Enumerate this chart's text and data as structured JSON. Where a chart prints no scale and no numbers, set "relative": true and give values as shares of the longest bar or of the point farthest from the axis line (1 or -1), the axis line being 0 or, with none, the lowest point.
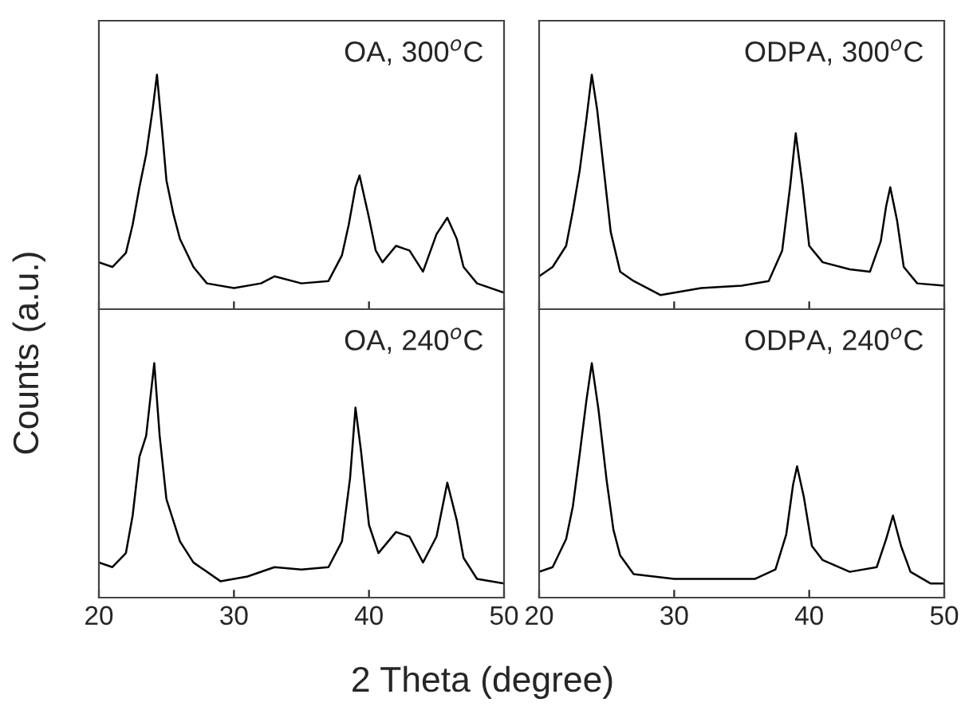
{
  "chart_data": [
    {
      "type": "line",
      "relative": true,
      "ylabel": "Counts (a.u.)",
      "annotations": [
        "OA, 300$^{o}$C"
      ],
      "xlim": [
        20,
        50
      ],
      "xticks": [
        20,
        30,
        40,
        50
      ],
      "tick_labels": false,
      "series": [
        {
          "color": "#000000",
          "x": [
            20,
            21,
            22,
            22.5,
            23,
            23.5,
            24,
            24.3,
            24.7,
            25,
            25.5,
            26,
            27,
            28,
            30,
            32,
            33,
            35,
            37,
            38,
            38.5,
            39,
            39.3,
            40,
            40.5,
            41,
            42,
            43,
            44,
            45,
            45.8,
            46.5,
            47,
            48,
            50
          ],
          "values": [
            0.2,
            0.18,
            0.24,
            0.36,
            0.52,
            0.66,
            0.86,
            1.0,
            0.75,
            0.55,
            0.41,
            0.3,
            0.18,
            0.11,
            0.09,
            0.11,
            0.14,
            0.11,
            0.12,
            0.23,
            0.36,
            0.52,
            0.57,
            0.39,
            0.25,
            0.2,
            0.27,
            0.25,
            0.16,
            0.32,
            0.39,
            0.3,
            0.18,
            0.11,
            0.07
          ]
        }
      ]
    },
    {
      "type": "line",
      "relative": true,
      "annotations": [
        "ODPA, 300$^{o}$C"
      ],
      "xlim": [
        20,
        50
      ],
      "xticks": [
        20,
        30,
        40,
        50
      ],
      "tick_labels": false,
      "series": [
        {
          "color": "#000000",
          "x": [
            20,
            21,
            22,
            22.5,
            23,
            23.5,
            23.9,
            24.3,
            24.8,
            25.3,
            26,
            27,
            29,
            32,
            35,
            37,
            38,
            38.6,
            39,
            39.5,
            40,
            41,
            43,
            44.5,
            45.3,
            45.7,
            46,
            46.5,
            47,
            48,
            50
          ],
          "values": [
            0.14,
            0.18,
            0.27,
            0.42,
            0.59,
            0.81,
            1.0,
            0.85,
            0.59,
            0.33,
            0.16,
            0.12,
            0.06,
            0.09,
            0.1,
            0.12,
            0.25,
            0.53,
            0.75,
            0.53,
            0.27,
            0.2,
            0.17,
            0.16,
            0.29,
            0.44,
            0.52,
            0.38,
            0.18,
            0.11,
            0.1
          ]
        }
      ]
    },
    {
      "type": "line",
      "relative": true,
      "xlabel": "2 Theta (degree)",
      "annotations": [
        "OA, 240$^{o}$C"
      ],
      "xlim": [
        20,
        50
      ],
      "xticks": [
        20,
        30,
        40,
        50
      ],
      "tick_labels": "x",
      "series": [
        {
          "color": "#000000",
          "x": [
            20,
            21,
            22,
            22.5,
            23,
            23.5,
            24.1,
            24.5,
            25,
            25.5,
            26,
            27,
            29,
            31,
            33,
            35,
            37,
            38,
            38.6,
            39,
            39.4,
            40,
            40.7,
            42,
            43,
            44,
            45,
            45.8,
            46.5,
            47,
            48,
            50
          ],
          "values": [
            0.15,
            0.13,
            0.19,
            0.35,
            0.6,
            0.69,
            1.0,
            0.69,
            0.42,
            0.33,
            0.24,
            0.15,
            0.07,
            0.09,
            0.13,
            0.12,
            0.13,
            0.24,
            0.51,
            0.81,
            0.63,
            0.31,
            0.19,
            0.28,
            0.26,
            0.15,
            0.26,
            0.49,
            0.33,
            0.17,
            0.08,
            0.06
          ]
        }
      ]
    },
    {
      "type": "line",
      "relative": true,
      "annotations": [
        "ODPA, 240$^{o}$C"
      ],
      "xlim": [
        20,
        50
      ],
      "xticks": [
        20,
        30,
        40,
        50
      ],
      "tick_labels": "x",
      "series": [
        {
          "color": "#000000",
          "x": [
            20,
            21,
            22,
            22.5,
            23,
            23.5,
            23.9,
            24.4,
            25,
            25.5,
            26,
            27,
            30,
            33,
            36,
            37.5,
            38.3,
            38.8,
            39.1,
            39.6,
            40.2,
            41,
            43,
            45,
            45.7,
            46.2,
            46.8,
            47.5,
            49,
            50
          ],
          "values": [
            0.11,
            0.13,
            0.25,
            0.39,
            0.61,
            0.84,
            1.0,
            0.8,
            0.5,
            0.29,
            0.18,
            0.1,
            0.08,
            0.08,
            0.08,
            0.12,
            0.27,
            0.48,
            0.56,
            0.43,
            0.22,
            0.16,
            0.11,
            0.13,
            0.25,
            0.35,
            0.22,
            0.11,
            0.06,
            0.06
          ]
        }
      ]
    }
  ]
}
